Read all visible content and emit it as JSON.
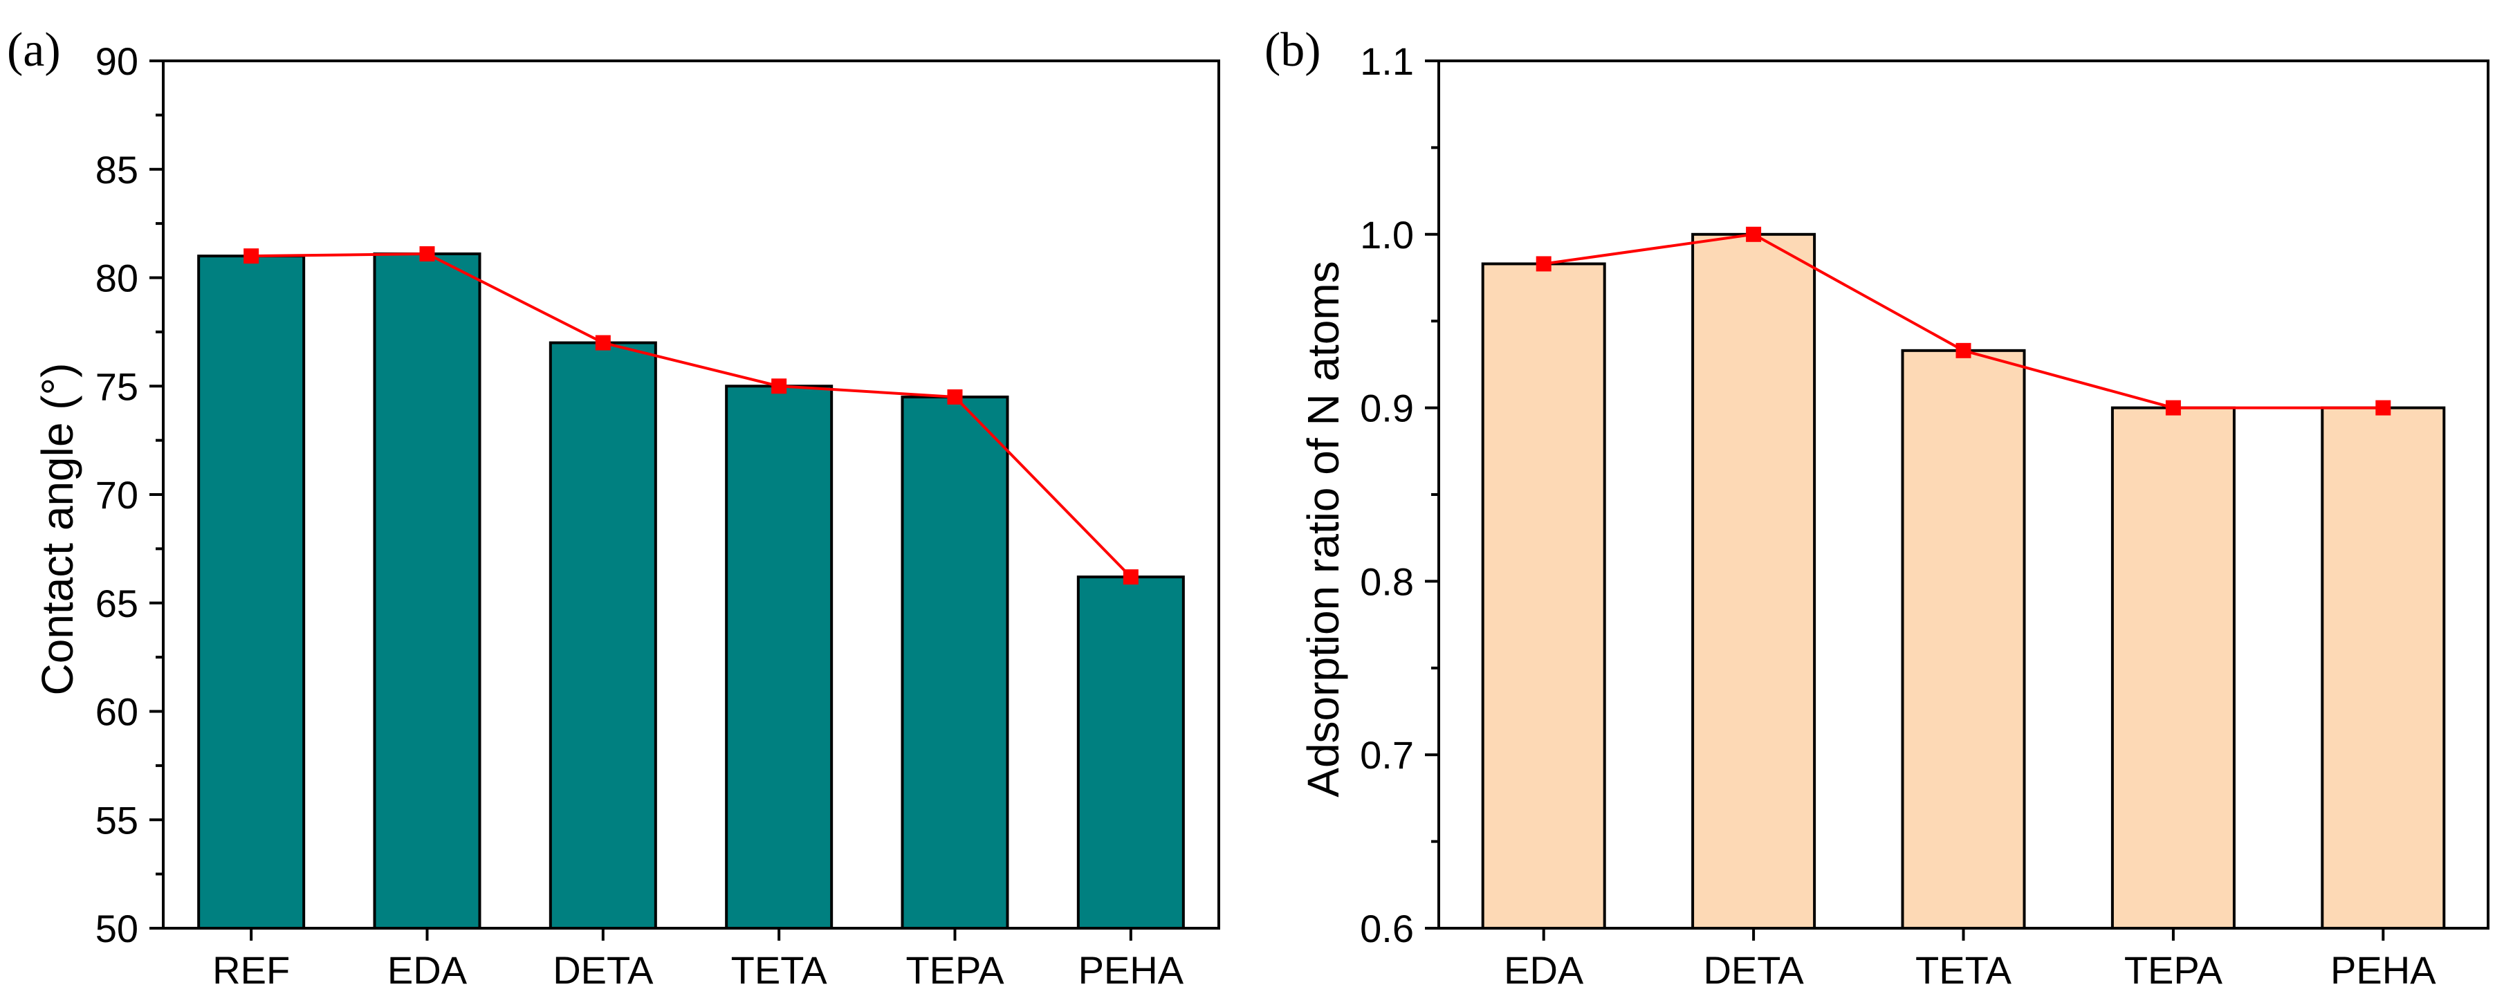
{
  "chart_data": [
    {
      "type": "bar",
      "panel_label": "(a)",
      "categories": [
        "REF",
        "EDA",
        "DETA",
        "TETA",
        "TEPA",
        "PEHA"
      ],
      "values": [
        81.0,
        81.1,
        77.0,
        75.0,
        74.5,
        66.2
      ],
      "line_values": [
        81.0,
        81.1,
        77.0,
        75.0,
        74.5,
        66.2
      ],
      "ylabel": "Contact angle (°)",
      "xlabel": "",
      "ylim": [
        50,
        90
      ],
      "yticks": [
        50,
        55,
        60,
        65,
        70,
        75,
        80,
        85,
        90
      ],
      "ytick_labels": [
        "50",
        "55",
        "60",
        "65",
        "70",
        "75",
        "80",
        "85",
        "90"
      ],
      "bar_color": "#008080",
      "line_color": "#ff0000"
    },
    {
      "type": "bar",
      "panel_label": "(b)",
      "categories": [
        "EDA",
        "DETA",
        "TETA",
        "TEPA",
        "PEHA"
      ],
      "values": [
        0.983,
        1.0,
        0.933,
        0.9,
        0.9
      ],
      "line_values": [
        0.983,
        1.0,
        0.933,
        0.9,
        0.9
      ],
      "ylabel": "Adsorption ratio of N atoms",
      "xlabel": "",
      "ylim": [
        0.6,
        1.1
      ],
      "yticks": [
        0.6,
        0.7,
        0.8,
        0.9,
        1.0,
        1.1
      ],
      "ytick_labels": [
        "0.6",
        "0.7",
        "0.8",
        "0.9",
        "1.0",
        "1.1"
      ],
      "bar_color": "#fdd9b5",
      "line_color": "#ff0000"
    }
  ]
}
